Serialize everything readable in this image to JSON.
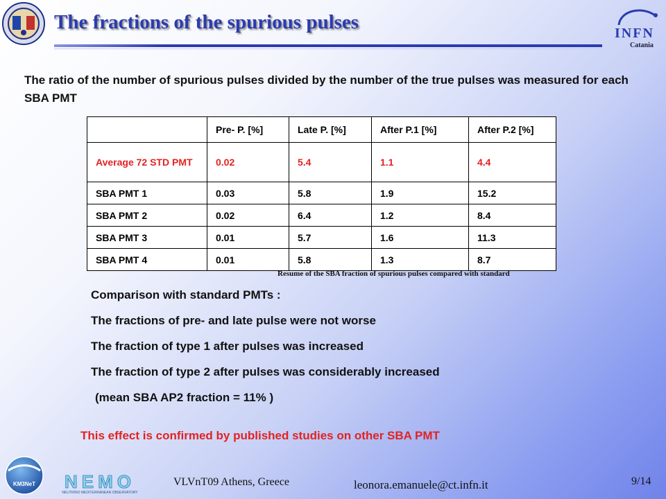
{
  "header": {
    "title": "The fractions of the spurious pulses",
    "infn_logo_text": "INFN",
    "infn_subtitle": "Catania"
  },
  "intro": "The ratio of the number of spurious pulses divided by the number of the true pulses was measured for each SBA PMT",
  "table": {
    "columns": [
      "",
      "Pre- P.  [%]",
      "Late P. [%]",
      "After P.1 [%]",
      "After P.2 [%]"
    ],
    "rows": [
      {
        "label": "Average 72 STD PMT",
        "values": [
          "0.02",
          "5.4",
          "1.1",
          "4.4"
        ]
      },
      {
        "label": "SBA PMT 1",
        "values": [
          "0.03",
          "5.8",
          "1.9",
          "15.2"
        ]
      },
      {
        "label": "SBA PMT 2",
        "values": [
          "0.02",
          "6.4",
          "1.2",
          "8.4"
        ]
      },
      {
        "label": "SBA PMT 3",
        "values": [
          "0.01",
          "5.7",
          "1.6",
          "11.3"
        ]
      },
      {
        "label": "SBA PMT 4",
        "values": [
          "0.01",
          "5.8",
          "1.3",
          "8.7"
        ]
      }
    ],
    "caption": "Resume  of the SBA fraction of spurious pulses compared with standard"
  },
  "comparison": {
    "heading": "Comparison with standard PMTs :",
    "points": [
      "The fractions of pre- and late pulse were not worse",
      "The fraction of type 1 after pulses was increased",
      "The fraction of type 2 after pulses was considerably increased"
    ],
    "mean_note": "(mean SBA AP2 fraction = 11% )"
  },
  "highlight": "This effect is confirmed by published studies on other SBA PMT",
  "footer": {
    "km3_logo_text": "KM3NeT",
    "nemo_logo_text": "NEMO",
    "nemo_tagline": "NEUTRINO MEDITERRANEAN OBSERVATORY",
    "event": "VLVnT09 Athens, Greece",
    "email": "leonora.emanuele@ct.infn.it",
    "page": "9/14"
  },
  "colors": {
    "title": "#2b3bb0",
    "highlight": "#e32222",
    "background_end": "#7083ea"
  }
}
